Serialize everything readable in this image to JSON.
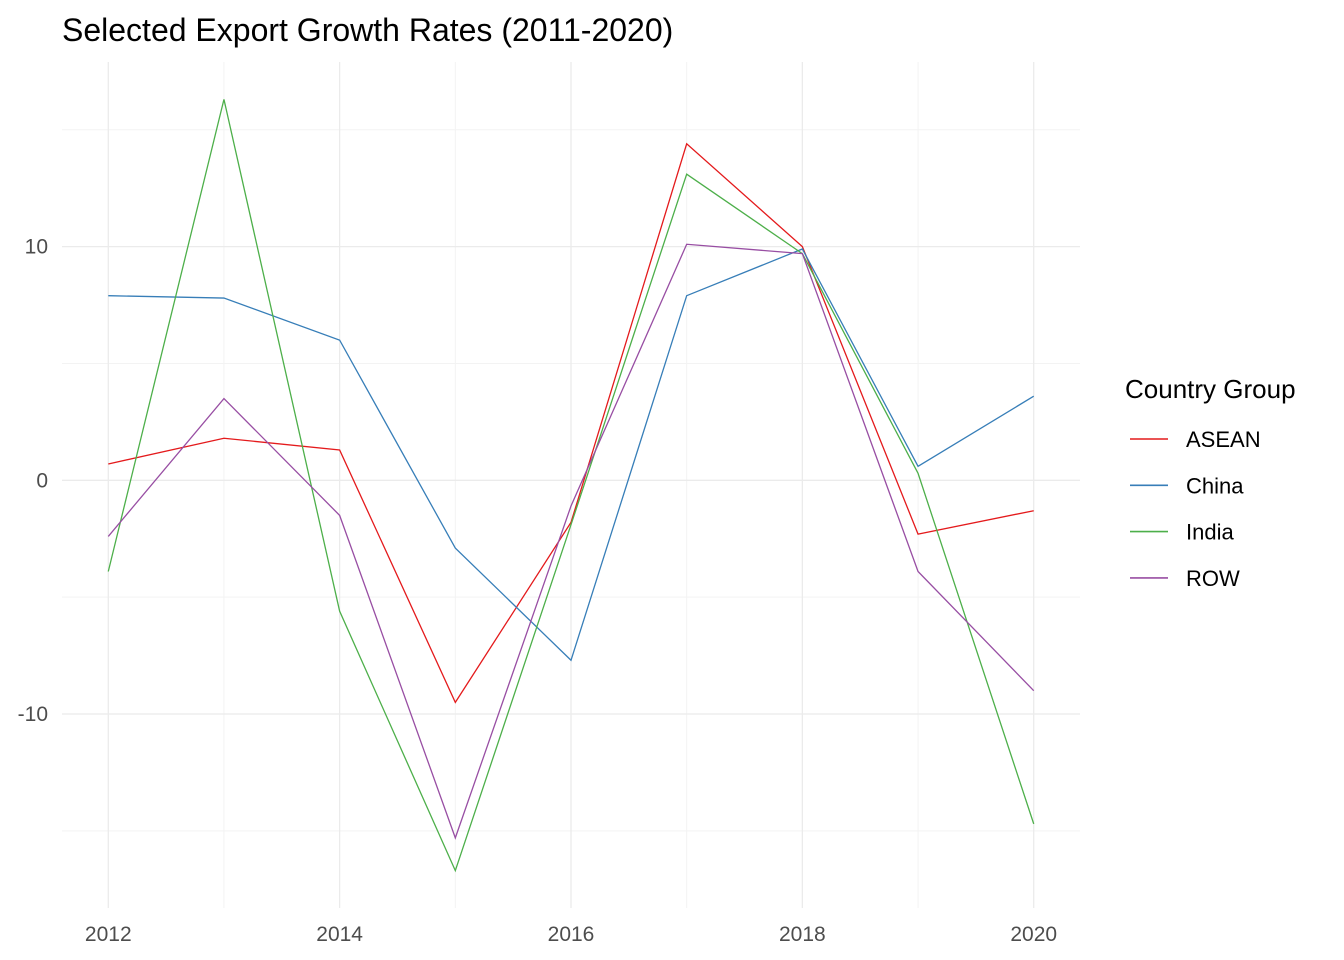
{
  "chart_data": {
    "type": "line",
    "title": "Selected Export Growth Rates (2011-2020)",
    "xlabel": "",
    "ylabel": "",
    "x": [
      2012,
      2013,
      2014,
      2015,
      2016,
      2017,
      2018,
      2019,
      2020
    ],
    "xticks": [
      "2012",
      "2014",
      "2016",
      "2018",
      "2020"
    ],
    "yticks": [
      "-10",
      "0",
      "10"
    ],
    "xlim": [
      2011.6,
      2020.4
    ],
    "ylim": [
      -18.3,
      17.9
    ],
    "grid": true,
    "legend": {
      "title": "Country Group",
      "placement": "right"
    },
    "series": [
      {
        "name": "ASEAN",
        "color": "#E41A1C",
        "values": [
          0.7,
          1.8,
          1.3,
          -9.5,
          -1.8,
          14.4,
          10.0,
          -2.3,
          -1.3
        ]
      },
      {
        "name": "China",
        "color": "#377EB8",
        "values": [
          7.9,
          7.8,
          6.0,
          -2.9,
          -7.7,
          7.9,
          9.9,
          0.6,
          3.6
        ]
      },
      {
        "name": "India",
        "color": "#4DAF4A",
        "values": [
          -3.9,
          16.3,
          -5.6,
          -16.7,
          -1.9,
          13.1,
          9.7,
          0.3,
          -14.7
        ]
      },
      {
        "name": "ROW",
        "color": "#984EA3",
        "values": [
          -2.4,
          3.5,
          -1.5,
          -15.3,
          -1.1,
          10.1,
          9.7,
          -3.9,
          -9.0
        ]
      }
    ]
  }
}
